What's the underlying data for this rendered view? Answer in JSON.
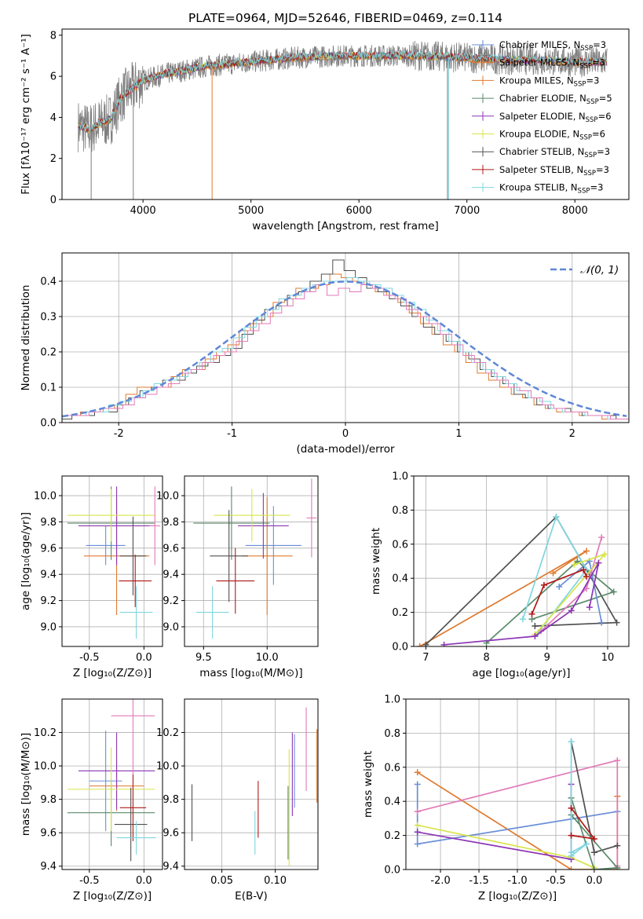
{
  "figure": {
    "title": "PLATE=0964, MJD=52646, FIBERID=0469, z=0.114"
  },
  "chart_data": [
    {
      "id": "spectrum",
      "type": "line",
      "xlabel": "wavelength [Angstrom, rest frame]",
      "ylabel": "Flux [fλ10⁻¹⁷ erg cm⁻² s⁻¹ A⁻¹]",
      "xlim": [
        3250,
        8500
      ],
      "ylim": [
        0,
        8.3
      ],
      "xticks": [
        4000,
        5000,
        6000,
        7000,
        8000
      ],
      "yticks": [
        0,
        2,
        4,
        6,
        8
      ],
      "grid": false,
      "legend_position": "top-right",
      "observed": {
        "x": [
          3400,
          3500,
          3600,
          3700,
          3800,
          3900,
          4000,
          4200,
          4400,
          4600,
          4800,
          5000,
          5200,
          5400,
          5600,
          5800,
          6000,
          6200,
          6400,
          6600,
          6800,
          7000,
          7200,
          7400,
          7600,
          7800,
          8000,
          8200,
          8300
        ],
        "y": [
          3.6,
          3.4,
          3.7,
          3.9,
          5.0,
          5.4,
          5.8,
          6.1,
          6.3,
          6.5,
          6.6,
          6.7,
          6.8,
          6.9,
          6.95,
          7.0,
          7.0,
          7.0,
          7.0,
          7.0,
          6.95,
          6.9,
          6.85,
          6.8,
          6.8,
          6.75,
          6.7,
          6.7,
          6.7
        ]
      },
      "series": [
        {
          "name": "Chabrier MILES, N_SSP=3",
          "color": "#6a8fd6"
        },
        {
          "name": "Salpeter MILES, N_SSP=3",
          "color": "#e07a2e"
        },
        {
          "name": "Kroupa MILES, N_SSP=3",
          "color": "#e07a2e"
        },
        {
          "name": "Chabrier ELODIE, N_SSP=5",
          "color": "#5a8a6a"
        },
        {
          "name": "Salpeter ELODIE, N_SSP=6",
          "color": "#8b35b5"
        },
        {
          "name": "Kroupa ELODIE, N_SSP=6",
          "color": "#d8e44a"
        },
        {
          "name": "Chabrier STELIB, N_SSP=3",
          "color": "#505050"
        },
        {
          "name": "Salpeter STELIB, N_SSP=3",
          "color": "#b01818"
        },
        {
          "name": "Kroupa STELIB, N_SSP=3",
          "color": "#7fd6e0"
        }
      ]
    },
    {
      "id": "residuals",
      "type": "bar",
      "xlabel": "(data-model)/error",
      "ylabel": "Normed distribution",
      "xlim": [
        -2.5,
        2.5
      ],
      "ylim": [
        0,
        0.48
      ],
      "xticks": [
        -2,
        -1,
        0,
        1,
        2
      ],
      "yticks": [
        0.0,
        0.1,
        0.2,
        0.3,
        0.4
      ],
      "grid": true,
      "legend_position": "top-right",
      "gaussian_label": "𝒩(0, 1)",
      "bin_width": 0.1,
      "bin_start": -2.5,
      "series": [
        {
          "color": "#e07a2e",
          "values": [
            0.02,
            0.02,
            0.03,
            0.03,
            0.04,
            0.05,
            0.08,
            0.1,
            0.1,
            0.1,
            0.13,
            0.15,
            0.15,
            0.18,
            0.2,
            0.22,
            0.26,
            0.28,
            0.3,
            0.34,
            0.35,
            0.38,
            0.38,
            0.39,
            0.42,
            0.41,
            0.4,
            0.39,
            0.37,
            0.36,
            0.34,
            0.31,
            0.28,
            0.25,
            0.22,
            0.2,
            0.17,
            0.14,
            0.12,
            0.1,
            0.08,
            0.07,
            0.05,
            0.04,
            0.03,
            0.03,
            0.02,
            0.02,
            0.01,
            0.01
          ]
        },
        {
          "color": "#505050",
          "values": [
            0.01,
            0.02,
            0.02,
            0.03,
            0.03,
            0.05,
            0.07,
            0.09,
            0.1,
            0.12,
            0.12,
            0.14,
            0.16,
            0.17,
            0.19,
            0.21,
            0.25,
            0.29,
            0.32,
            0.33,
            0.36,
            0.37,
            0.4,
            0.42,
            0.46,
            0.43,
            0.41,
            0.38,
            0.37,
            0.35,
            0.33,
            0.3,
            0.27,
            0.25,
            0.23,
            0.2,
            0.18,
            0.15,
            0.13,
            0.11,
            0.08,
            0.07,
            0.05,
            0.04,
            0.04,
            0.03,
            0.02,
            0.02,
            0.02,
            0.01
          ]
        },
        {
          "color": "#7fd6e0",
          "values": [
            0.02,
            0.02,
            0.03,
            0.03,
            0.05,
            0.06,
            0.07,
            0.09,
            0.11,
            0.12,
            0.13,
            0.15,
            0.17,
            0.2,
            0.21,
            0.24,
            0.27,
            0.3,
            0.32,
            0.35,
            0.36,
            0.38,
            0.39,
            0.4,
            0.4,
            0.41,
            0.4,
            0.39,
            0.38,
            0.36,
            0.34,
            0.32,
            0.29,
            0.26,
            0.23,
            0.2,
            0.17,
            0.15,
            0.13,
            0.11,
            0.09,
            0.07,
            0.06,
            0.04,
            0.03,
            0.03,
            0.02,
            0.02,
            0.01,
            0.01
          ]
        },
        {
          "color": "#e27ab8",
          "values": [
            0.02,
            0.02,
            0.03,
            0.04,
            0.04,
            0.05,
            0.07,
            0.08,
            0.1,
            0.11,
            0.14,
            0.15,
            0.17,
            0.19,
            0.2,
            0.23,
            0.26,
            0.28,
            0.31,
            0.33,
            0.35,
            0.37,
            0.39,
            0.36,
            0.38,
            0.37,
            0.39,
            0.38,
            0.36,
            0.35,
            0.32,
            0.3,
            0.28,
            0.25,
            0.22,
            0.19,
            0.17,
            0.14,
            0.12,
            0.1,
            0.09,
            0.07,
            0.05,
            0.04,
            0.03,
            0.03,
            0.02,
            0.02,
            0.01,
            0.01
          ]
        }
      ],
      "gaussian_color": "#5f87d6"
    },
    {
      "id": "age-vs-Z",
      "type": "scatter",
      "xlabel": "Z [log₁₀(Z/Z⊙)]",
      "ylabel": "age  [log₁₀(age/yr)]",
      "xlim": [
        -0.75,
        0.17
      ],
      "ylim": [
        8.85,
        10.15
      ],
      "xticks": [
        -0.5,
        0.0
      ],
      "yticks": [
        9.0,
        9.2,
        9.4,
        9.6,
        9.8,
        10.0
      ],
      "grid": true,
      "points": [
        {
          "x": -0.35,
          "y": 9.62,
          "xerr": 0.18,
          "yerr": 0.15,
          "color": "#6a8fd6"
        },
        {
          "x": -0.25,
          "y": 9.54,
          "xerr": 0.3,
          "yerr": 0.45,
          "color": "#e07a2e"
        },
        {
          "x": -0.3,
          "y": 9.79,
          "xerr": 0.4,
          "yerr": 0.28,
          "color": "#5a8a6a"
        },
        {
          "x": -0.25,
          "y": 9.77,
          "xerr": 0.35,
          "yerr": 0.3,
          "color": "#8b35b5"
        },
        {
          "x": -0.3,
          "y": 9.85,
          "xerr": 0.4,
          "yerr": 0.2,
          "color": "#d8e44a"
        },
        {
          "x": -0.1,
          "y": 9.54,
          "xerr": 0.12,
          "yerr": 0.3,
          "color": "#505050"
        },
        {
          "x": -0.08,
          "y": 9.35,
          "xerr": 0.15,
          "yerr": 0.2,
          "color": "#b01818"
        },
        {
          "x": -0.07,
          "y": 9.11,
          "xerr": 0.15,
          "yerr": 0.2,
          "color": "#7fd6e0"
        },
        {
          "x": 0.1,
          "y": 9.77,
          "xerr": 0.05,
          "yerr": 0.3,
          "color": "#e27ab8"
        }
      ]
    },
    {
      "id": "age-vs-mass",
      "type": "scatter",
      "xlabel": "mass [log₁₀(M/M⊙)]",
      "ylabel": "",
      "xlim": [
        9.35,
        10.4
      ],
      "ylim": [
        8.85,
        10.15
      ],
      "xticks": [
        9.5,
        10.0
      ],
      "yticks": [
        9.0,
        9.2,
        9.4,
        9.6,
        9.8,
        10.0
      ],
      "grid": true,
      "points": [
        {
          "x": 10.05,
          "y": 9.62,
          "xerr": 0.22,
          "yerr": 0.3,
          "color": "#6a8fd6"
        },
        {
          "x": 10.0,
          "y": 9.54,
          "xerr": 0.2,
          "yerr": 0.45,
          "color": "#e07a2e"
        },
        {
          "x": 9.72,
          "y": 9.79,
          "xerr": 0.3,
          "yerr": 0.28,
          "color": "#5a8a6a"
        },
        {
          "x": 9.97,
          "y": 9.77,
          "xerr": 0.2,
          "yerr": 0.25,
          "color": "#8b35b5"
        },
        {
          "x": 9.88,
          "y": 9.85,
          "xerr": 0.3,
          "yerr": 0.2,
          "color": "#d8e44a"
        },
        {
          "x": 9.7,
          "y": 9.54,
          "xerr": 0.15,
          "yerr": 0.35,
          "color": "#505050"
        },
        {
          "x": 9.75,
          "y": 9.35,
          "xerr": 0.15,
          "yerr": 0.25,
          "color": "#b01818"
        },
        {
          "x": 9.57,
          "y": 9.11,
          "xerr": 0.13,
          "yerr": 0.2,
          "color": "#7fd6e0"
        },
        {
          "x": 10.35,
          "y": 9.83,
          "xerr": 0.04,
          "yerr": 0.3,
          "color": "#e27ab8"
        }
      ]
    },
    {
      "id": "massweight-vs-age",
      "type": "line",
      "xlabel": "age  [log₁₀(age/yr)]",
      "ylabel": "mass weight",
      "xlim": [
        6.8,
        10.35
      ],
      "ylim": [
        0,
        1.0
      ],
      "xticks": [
        7,
        8,
        9,
        10
      ],
      "yticks": [
        0.0,
        0.2,
        0.4,
        0.6,
        0.8,
        1.0
      ],
      "grid": true,
      "series": [
        {
          "color": "#e07a2e",
          "x": [
            6.9,
            9.65,
            9.1
          ],
          "y": [
            0.0,
            0.56,
            0.43
          ]
        },
        {
          "color": "#505050",
          "x": [
            7.0,
            9.15,
            10.15,
            8.8
          ],
          "y": [
            0.01,
            0.76,
            0.14,
            0.12
          ]
        },
        {
          "color": "#5a8a6a",
          "x": [
            8.0,
            9.5,
            10.1,
            8.75
          ],
          "y": [
            0.02,
            0.5,
            0.32,
            0.16
          ]
        },
        {
          "color": "#6a8fd6",
          "x": [
            9.2,
            9.7,
            9.9
          ],
          "y": [
            0.35,
            0.5,
            0.14
          ]
        },
        {
          "color": "#7fd6e0",
          "x": [
            8.6,
            9.15,
            9.65,
            8.85
          ],
          "y": [
            0.16,
            0.76,
            0.45,
            0.08
          ]
        },
        {
          "color": "#e27ab8",
          "x": [
            8.9,
            9.65,
            9.9
          ],
          "y": [
            0.09,
            0.34,
            0.64
          ]
        },
        {
          "color": "#d8e44a",
          "x": [
            8.8,
            9.95,
            9.45
          ],
          "y": [
            0.07,
            0.54,
            0.48
          ]
        },
        {
          "color": "#8b35b5",
          "x": [
            7.3,
            8.8,
            9.4,
            9.85,
            9.7
          ],
          "y": [
            0.01,
            0.06,
            0.21,
            0.49,
            0.23
          ]
        },
        {
          "color": "#b01818",
          "x": [
            8.75,
            8.95,
            9.6,
            9.65
          ],
          "y": [
            0.19,
            0.36,
            0.45,
            0.41
          ]
        }
      ]
    },
    {
      "id": "mass-vs-Z",
      "type": "scatter",
      "xlabel": "Z [log₁₀(Z/Z⊙)]",
      "ylabel": "mass [log₁₀(M/M⊙)]",
      "xlim": [
        -0.75,
        0.17
      ],
      "ylim": [
        9.38,
        10.4
      ],
      "xticks": [
        -0.5,
        0.0
      ],
      "yticks": [
        9.4,
        9.6,
        9.8,
        10.0,
        10.2
      ],
      "grid": true,
      "points": [
        {
          "x": -0.35,
          "y": 9.91,
          "xerr": 0.15,
          "yerr": 0.3,
          "color": "#6a8fd6"
        },
        {
          "x": -0.25,
          "y": 9.88,
          "xerr": 0.25,
          "yerr": 0.15,
          "color": "#e07a2e"
        },
        {
          "x": -0.3,
          "y": 9.72,
          "xerr": 0.4,
          "yerr": 0.2,
          "color": "#5a8a6a"
        },
        {
          "x": -0.25,
          "y": 9.97,
          "xerr": 0.35,
          "yerr": 0.23,
          "color": "#8b35b5"
        },
        {
          "x": -0.3,
          "y": 9.86,
          "xerr": 0.4,
          "yerr": 0.25,
          "color": "#d8e44a"
        },
        {
          "x": -0.12,
          "y": 9.65,
          "xerr": 0.15,
          "yerr": 0.22,
          "color": "#505050"
        },
        {
          "x": -0.1,
          "y": 9.75,
          "xerr": 0.12,
          "yerr": 0.2,
          "color": "#b01818"
        },
        {
          "x": -0.07,
          "y": 9.57,
          "xerr": 0.18,
          "yerr": 0.1,
          "color": "#7fd6e0"
        },
        {
          "x": -0.1,
          "y": 10.3,
          "xerr": 0.2,
          "yerr": 0.35,
          "color": "#e27ab8"
        }
      ]
    },
    {
      "id": "mass-vs-EBV",
      "type": "scatter",
      "xlabel": "E(B-V)",
      "ylabel": "",
      "xlim": [
        0.015,
        0.14
      ],
      "ylim": [
        9.38,
        10.4
      ],
      "xticks": [
        0.05,
        0.1
      ],
      "yticks": [
        9.4,
        9.6,
        9.8,
        10.0,
        10.2
      ],
      "grid": true,
      "points": [
        {
          "x": 0.022,
          "y": 9.72,
          "xerr": 0,
          "yerr": 0.17,
          "color": "#505050"
        },
        {
          "x": 0.081,
          "y": 9.6,
          "xerr": 0,
          "yerr": 0.13,
          "color": "#7fd6e0"
        },
        {
          "x": 0.084,
          "y": 9.74,
          "xerr": 0,
          "yerr": 0.17,
          "color": "#b01818"
        },
        {
          "x": 0.112,
          "y": 9.66,
          "xerr": 0,
          "yerr": 0.22,
          "color": "#5a8a6a"
        },
        {
          "x": 0.113,
          "y": 9.75,
          "xerr": 0,
          "yerr": 0.35,
          "color": "#d8e44a"
        },
        {
          "x": 0.116,
          "y": 9.95,
          "xerr": 0,
          "yerr": 0.25,
          "color": "#8b35b5"
        },
        {
          "x": 0.118,
          "y": 9.97,
          "xerr": 0,
          "yerr": 0.22,
          "color": "#6a8fd6"
        },
        {
          "x": 0.129,
          "y": 10.1,
          "xerr": 0,
          "yerr": 0.25,
          "color": "#e27ab8"
        },
        {
          "x": 0.139,
          "y": 10.0,
          "xerr": 0,
          "yerr": 0.22,
          "color": "#e07a2e"
        }
      ]
    },
    {
      "id": "massweight-vs-Z",
      "type": "line",
      "xlabel": "Z [log₁₀(Z/Z⊙)]",
      "ylabel": "mass weight",
      "xlim": [
        -2.45,
        0.45
      ],
      "ylim": [
        0,
        1.0
      ],
      "xticks": [
        -2.0,
        -1.5,
        -1.0,
        -0.5,
        0.0
      ],
      "yticks": [
        0.0,
        0.2,
        0.4,
        0.6,
        0.8,
        1.0
      ],
      "grid": true,
      "series": [
        {
          "color": "#e07a2e",
          "x": [
            -2.3,
            -0.3,
            0.3,
            0.3
          ],
          "y": [
            0.57,
            0.0,
            0.0,
            0.43
          ]
        },
        {
          "color": "#6a8fd6",
          "x": [
            -2.3,
            -2.3,
            0.3,
            0.3
          ],
          "y": [
            0.5,
            0.15,
            0.34,
            0.34
          ]
        },
        {
          "color": "#e27ab8",
          "x": [
            -2.3,
            0.3,
            0.3
          ],
          "y": [
            0.34,
            0.64,
            0.02
          ]
        },
        {
          "color": "#d8e44a",
          "x": [
            -2.3,
            -0.3,
            0.0
          ],
          "y": [
            0.26,
            0.07,
            0.01
          ]
        },
        {
          "color": "#8b35b5",
          "x": [
            -2.3,
            -0.3,
            -0.3
          ],
          "y": [
            0.22,
            0.06,
            0.5
          ]
        },
        {
          "color": "#505050",
          "x": [
            -0.3,
            0.0,
            0.3
          ],
          "y": [
            0.75,
            0.1,
            0.14
          ]
        },
        {
          "color": "#5a8a6a",
          "x": [
            -0.3,
            0.0,
            0.3,
            -0.3
          ],
          "y": [
            0.42,
            0.0,
            0.01,
            0.32
          ]
        },
        {
          "color": "#7fd6e0",
          "x": [
            -0.3,
            -0.3,
            -0.1,
            -0.3
          ],
          "y": [
            0.75,
            0.1,
            0.15,
            0.08
          ]
        },
        {
          "color": "#b01818",
          "x": [
            -0.3,
            0.0,
            -0.3
          ],
          "y": [
            0.36,
            0.18,
            0.2
          ]
        }
      ]
    }
  ]
}
